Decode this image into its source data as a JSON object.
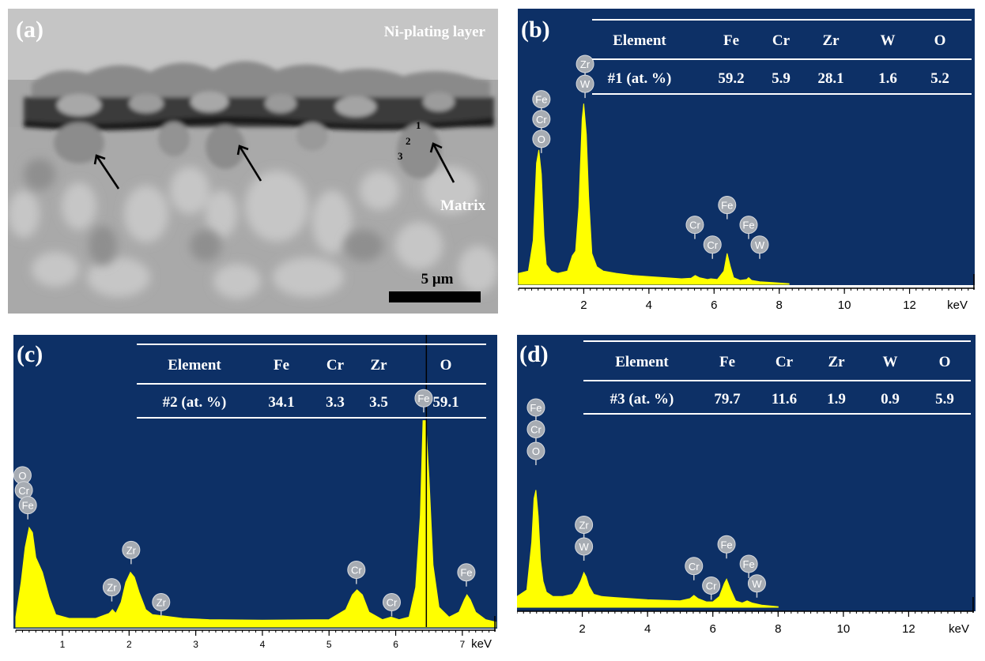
{
  "colors": {
    "plot_background": "#0d3066",
    "spectrum_fill": "#ffff00",
    "table_text": "#ffffff",
    "peak_label_fill": "#a7acb3",
    "sem_background": "#bdbdbd"
  },
  "panel_a": {
    "label": "(a)",
    "top_right_label": "Ni-plating layer",
    "matrix_label": "Matrix",
    "scale_bar_label": "5 μm",
    "point_labels": [
      "1",
      "2",
      "3"
    ]
  },
  "chart_data": [
    {
      "type": "area",
      "panel_label": "(b)",
      "x_unit": "keV",
      "xlim": [
        0,
        14
      ],
      "xticks": [
        2,
        4,
        6,
        8,
        10,
        12
      ],
      "ylim": [
        0,
        100
      ],
      "table": {
        "header": [
          "Element",
          "Fe",
          "Cr",
          "Zr",
          "W",
          "O"
        ],
        "row": [
          "#1 (at. %)",
          "59.2",
          "5.9",
          "28.1",
          "1.6",
          "5.2"
        ]
      },
      "series": [
        {
          "x": [
            0.0,
            0.3,
            0.45,
            0.55,
            0.62,
            0.7,
            0.78,
            0.85,
            1.0,
            1.2,
            1.5,
            1.65,
            1.75,
            1.85,
            1.95,
            2.0,
            2.08,
            2.15,
            2.25,
            2.4,
            2.6,
            3.0,
            3.5,
            4.0,
            5.0,
            5.3,
            5.42,
            5.55,
            5.8,
            5.9,
            6.1,
            6.3,
            6.4,
            6.5,
            6.6,
            6.8,
            7.0,
            7.06,
            7.15,
            7.4,
            7.8,
            8.3
          ],
          "y": [
            5,
            6,
            20,
            55,
            61,
            50,
            22,
            9,
            6,
            5,
            6,
            13,
            15,
            35,
            75,
            82,
            68,
            40,
            14,
            8,
            6,
            5,
            4,
            3.5,
            2.5,
            2.8,
            4,
            3,
            2.2,
            2.5,
            2.2,
            6,
            14,
            8,
            3,
            1.8,
            2.2,
            3,
            1.8,
            1.2,
            0.8,
            0.3
          ]
        }
      ],
      "peak_labels": [
        {
          "text": "Zr",
          "x": 2.04,
          "y": 100
        },
        {
          "text": "W",
          "x": 2.04,
          "y": 91
        },
        {
          "text": "Fe",
          "x": 0.7,
          "y": 84
        },
        {
          "text": "Cr",
          "x": 0.7,
          "y": 75
        },
        {
          "text": "O",
          "x": 0.7,
          "y": 66
        },
        {
          "text": "Cr",
          "x": 5.41,
          "y": 27
        },
        {
          "text": "Cr",
          "x": 5.95,
          "y": 18
        },
        {
          "text": "Fe",
          "x": 6.4,
          "y": 36
        },
        {
          "text": "Fe",
          "x": 7.06,
          "y": 27
        },
        {
          "text": "W",
          "x": 7.4,
          "y": 18
        }
      ]
    },
    {
      "type": "area",
      "panel_label": "(c)",
      "x_unit": "keV",
      "xlim": [
        0.3,
        7.5
      ],
      "xticks": [
        1,
        2,
        3,
        4,
        5,
        6,
        7
      ],
      "ylim": [
        0,
        100
      ],
      "vline_x": 6.46,
      "table": {
        "header": [
          "Element",
          "Fe",
          "Cr",
          "Zr",
          "O"
        ],
        "row": [
          "#2 (at. %)",
          "34.1",
          "3.3",
          "3.5",
          "59.1"
        ]
      },
      "series": [
        {
          "x": [
            0.3,
            0.38,
            0.44,
            0.5,
            0.55,
            0.6,
            0.7,
            0.8,
            0.9,
            1.1,
            1.3,
            1.5,
            1.7,
            1.75,
            1.8,
            1.88,
            1.95,
            2.02,
            2.08,
            2.15,
            2.25,
            2.35,
            2.5,
            2.8,
            3.2,
            4.0,
            5.0,
            5.25,
            5.35,
            5.42,
            5.5,
            5.6,
            5.8,
            5.93,
            6.05,
            6.2,
            6.3,
            6.37,
            6.41,
            6.45,
            6.5,
            6.56,
            6.65,
            6.8,
            6.95,
            7.03,
            7.07,
            7.12,
            7.2,
            7.35,
            7.5
          ],
          "y": [
            4,
            18,
            32,
            40,
            38,
            28,
            22,
            12,
            5,
            3.5,
            3.5,
            3.5,
            5.5,
            7,
            5.5,
            10,
            18,
            22,
            20,
            14,
            7,
            5,
            4.5,
            3.5,
            3,
            2.8,
            3,
            7,
            13,
            15,
            13,
            6,
            3,
            4,
            3,
            4,
            16,
            45,
            83,
            83,
            60,
            25,
            8,
            4,
            6,
            11,
            13,
            11,
            6,
            3,
            2
          ]
        }
      ],
      "peak_labels": [
        {
          "text": "O",
          "x": 0.4,
          "y": 61
        },
        {
          "text": "Cr",
          "x": 0.42,
          "y": 55
        },
        {
          "text": "Fe",
          "x": 0.48,
          "y": 49
        },
        {
          "text": "Zr",
          "x": 2.03,
          "y": 31
        },
        {
          "text": "Zr",
          "x": 1.74,
          "y": 16
        },
        {
          "text": "Zr",
          "x": 2.48,
          "y": 10
        },
        {
          "text": "Cr",
          "x": 5.41,
          "y": 23
        },
        {
          "text": "Cr",
          "x": 5.94,
          "y": 10
        },
        {
          "text": "Fe",
          "x": 6.42,
          "y": 92
        },
        {
          "text": "Fe",
          "x": 7.06,
          "y": 22
        }
      ]
    },
    {
      "type": "area",
      "panel_label": "(d)",
      "x_unit": "keV",
      "xlim": [
        0,
        14
      ],
      "xticks": [
        2,
        4,
        6,
        8,
        10,
        12
      ],
      "ylim": [
        0,
        100
      ],
      "table": {
        "header": [
          "Element",
          "Fe",
          "Cr",
          "Zr",
          "W",
          "O"
        ],
        "row": [
          "#3 (at. %)",
          "79.7",
          "11.6",
          "1.9",
          "0.9",
          "5.9"
        ]
      },
      "series": [
        {
          "x": [
            0.0,
            0.3,
            0.45,
            0.52,
            0.58,
            0.65,
            0.72,
            0.8,
            0.9,
            1.1,
            1.4,
            1.7,
            1.85,
            1.95,
            2.05,
            2.12,
            2.2,
            2.35,
            2.6,
            3.0,
            4.0,
            5.0,
            5.3,
            5.42,
            5.55,
            5.8,
            6.0,
            6.2,
            6.35,
            6.42,
            6.55,
            6.7,
            6.9,
            7.05,
            7.2,
            7.5,
            8.0
          ],
          "y": [
            5,
            8,
            30,
            50,
            54,
            42,
            22,
            12,
            7,
            5,
            5,
            6,
            9,
            12,
            16,
            14,
            10,
            6,
            5,
            4.5,
            3.5,
            3,
            4,
            5.5,
            4,
            2.5,
            2.5,
            5,
            11,
            13,
            8,
            3,
            2,
            3,
            2,
            1,
            0.3
          ]
        }
      ],
      "peak_labels": [
        {
          "text": "Fe",
          "x": 0.58,
          "y": 92
        },
        {
          "text": "Cr",
          "x": 0.58,
          "y": 82
        },
        {
          "text": "O",
          "x": 0.58,
          "y": 72
        },
        {
          "text": "Zr",
          "x": 2.05,
          "y": 38
        },
        {
          "text": "W",
          "x": 2.05,
          "y": 28
        },
        {
          "text": "Cr",
          "x": 5.42,
          "y": 19
        },
        {
          "text": "Cr",
          "x": 5.95,
          "y": 10
        },
        {
          "text": "Fe",
          "x": 6.42,
          "y": 29
        },
        {
          "text": "Fe",
          "x": 7.1,
          "y": 20
        },
        {
          "text": "W",
          "x": 7.35,
          "y": 11
        }
      ]
    }
  ]
}
